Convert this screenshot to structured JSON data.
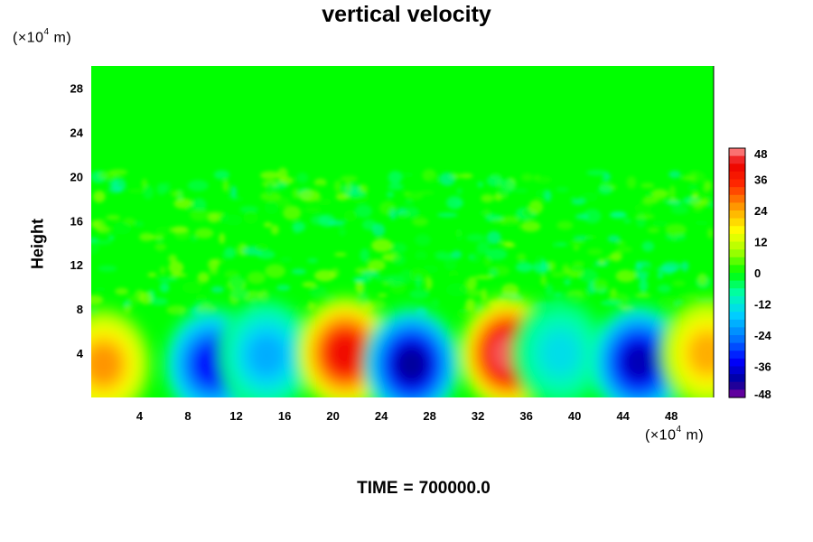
{
  "chart_data": {
    "type": "heatmap",
    "title": "vertical velocity",
    "ylabel": "Height",
    "xlabel": "",
    "y_unit_prefix": "(×10",
    "y_unit_exp": "4",
    "y_unit_suffix": "m)",
    "x_unit_prefix": "(×10",
    "x_unit_exp": "4",
    "x_unit_suffix": "m)",
    "xlim": [
      0,
      51.5
    ],
    "ylim": [
      0,
      30
    ],
    "x_ticks": [
      4,
      8,
      12,
      16,
      20,
      24,
      28,
      32,
      36,
      40,
      44,
      48
    ],
    "y_ticks": [
      4,
      8,
      12,
      16,
      20,
      24,
      28
    ],
    "colorbar": {
      "range": [
        -48,
        48
      ],
      "ticks": [
        48,
        36,
        24,
        12,
        0,
        -12,
        -24,
        -36,
        -48
      ],
      "levels": 32
    },
    "features": [
      {
        "x": 1.0,
        "y": 3.0,
        "value": 26
      },
      {
        "x": 10.0,
        "y": 3.0,
        "value": -34
      },
      {
        "x": 14.5,
        "y": 3.8,
        "value": -20
      },
      {
        "x": 21.0,
        "y": 4.0,
        "value": 40
      },
      {
        "x": 26.5,
        "y": 3.0,
        "value": -42
      },
      {
        "x": 34.5,
        "y": 4.0,
        "value": 46
      },
      {
        "x": 38.8,
        "y": 4.0,
        "value": -14
      },
      {
        "x": 45.3,
        "y": 3.2,
        "value": -40
      },
      {
        "x": 51.0,
        "y": 4.0,
        "value": 24
      }
    ],
    "time_label": "TIME",
    "time_equals": "=",
    "time_value": "700000.0"
  }
}
